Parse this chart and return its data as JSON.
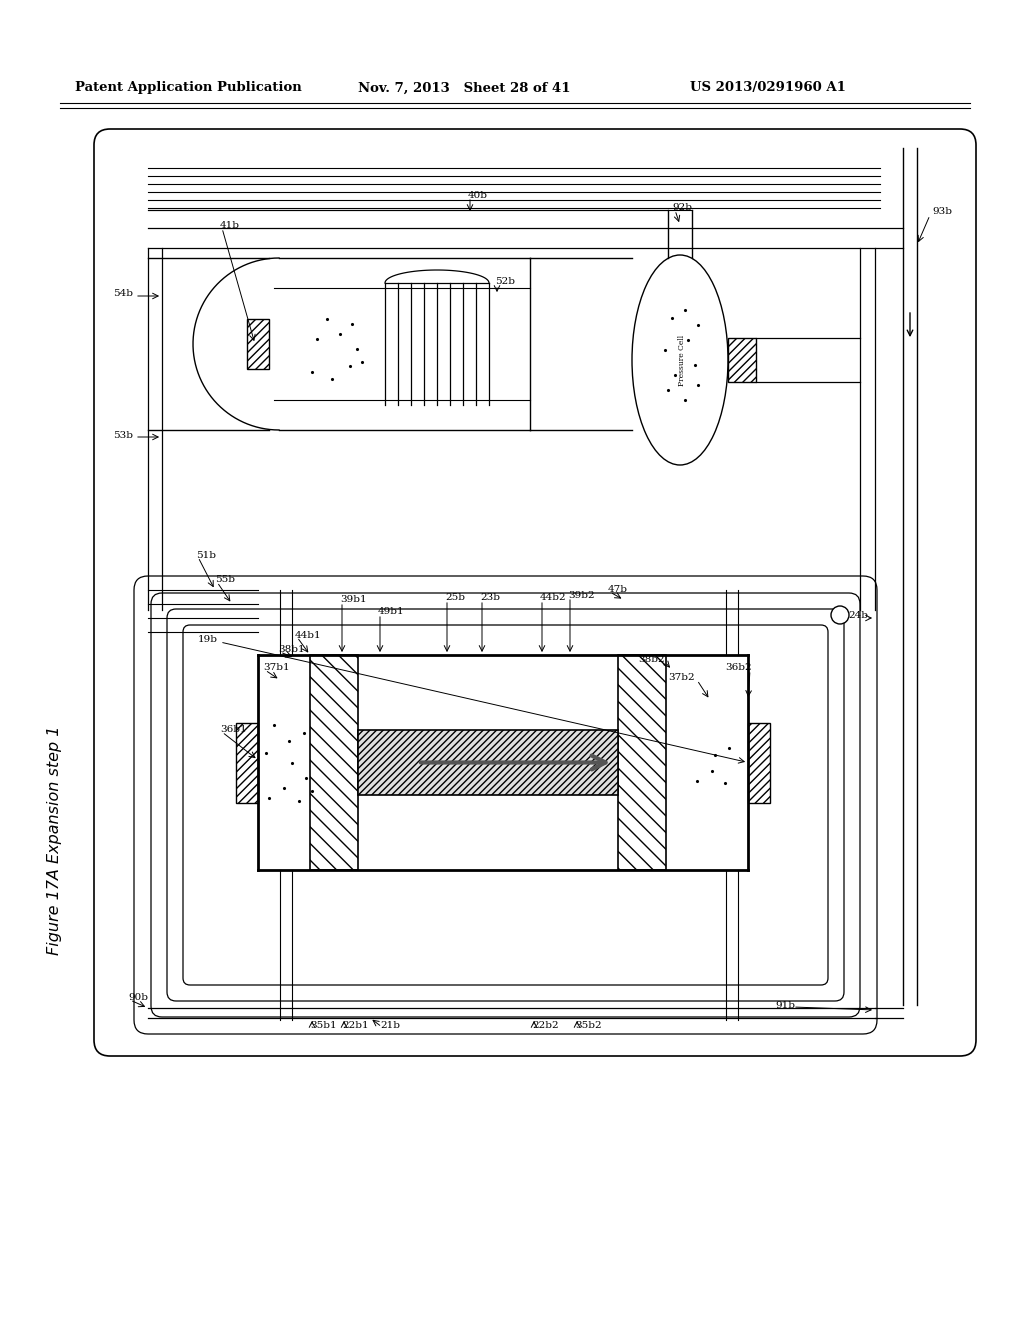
{
  "header_left": "Patent Application Publication",
  "header_mid": "Nov. 7, 2013   Sheet 28 of 41",
  "header_right": "US 2013/0291960 A1",
  "fig_title": "Figure 17A Expansion step 1",
  "bg_color": "#ffffff",
  "lc": "#000000"
}
